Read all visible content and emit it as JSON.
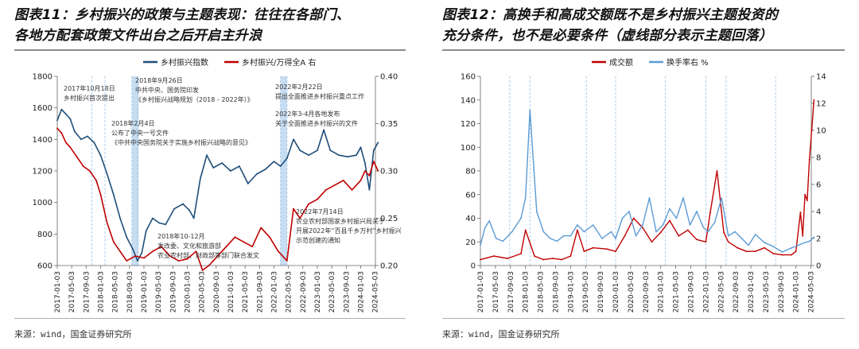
{
  "left": {
    "title_line1": "图表11：乡村振兴的政策与主题表现：往往在各部门、",
    "title_line2": "各地方配套政策文件出台之后开启主升浪",
    "source": "来源：wind，国金证券研究所",
    "colors": {
      "index": "#1f4e79",
      "ratio": "#c00000",
      "shade": "#bdd7ee"
    },
    "chart_data": {
      "type": "line",
      "title": "",
      "series": [
        {
          "name": "乡村振兴指数",
          "axis": "left",
          "x": [
            2017.0,
            2017.1,
            2017.2,
            2017.3,
            2017.4,
            2017.55,
            2017.7,
            2017.85,
            2018.0,
            2018.15,
            2018.3,
            2018.45,
            2018.6,
            2018.75,
            2018.85,
            2018.95,
            2019.05,
            2019.2,
            2019.35,
            2019.5,
            2019.7,
            2019.9,
            2020.05,
            2020.15,
            2020.3,
            2020.45,
            2020.6,
            2020.8,
            2021.0,
            2021.2,
            2021.4,
            2021.6,
            2021.8,
            2022.0,
            2022.15,
            2022.3,
            2022.45,
            2022.6,
            2022.8,
            2023.0,
            2023.15,
            2023.3,
            2023.5,
            2023.7,
            2023.9,
            2024.0,
            2024.1,
            2024.2,
            2024.3,
            2024.4
          ],
          "values": [
            1520,
            1590,
            1560,
            1530,
            1450,
            1400,
            1420,
            1380,
            1300,
            1180,
            1050,
            900,
            780,
            700,
            630,
            680,
            820,
            900,
            870,
            860,
            960,
            990,
            950,
            900,
            1150,
            1300,
            1220,
            1250,
            1200,
            1230,
            1120,
            1180,
            1210,
            1260,
            1230,
            1280,
            1400,
            1330,
            1300,
            1330,
            1460,
            1330,
            1300,
            1290,
            1300,
            1350,
            1250,
            1080,
            1330,
            1380
          ]
        },
        {
          "name": "乡村振兴/万得全A 右",
          "axis": "right",
          "x": [
            2017.0,
            2017.1,
            2017.2,
            2017.3,
            2017.45,
            2017.6,
            2017.75,
            2017.9,
            2018.0,
            2018.15,
            2018.3,
            2018.45,
            2018.6,
            2018.8,
            2019.0,
            2019.2,
            2019.4,
            2019.6,
            2019.8,
            2020.0,
            2020.2,
            2020.35,
            2020.5,
            2020.7,
            2020.9,
            2021.1,
            2021.3,
            2021.5,
            2021.7,
            2021.9,
            2022.1,
            2022.3,
            2022.45,
            2022.6,
            2022.8,
            2023.0,
            2023.2,
            2023.4,
            2023.6,
            2023.8,
            2024.0,
            2024.1,
            2024.2,
            2024.3,
            2024.4
          ],
          "values": [
            0.345,
            0.34,
            0.33,
            0.325,
            0.315,
            0.305,
            0.3,
            0.29,
            0.275,
            0.245,
            0.225,
            0.215,
            0.205,
            0.21,
            0.208,
            0.215,
            0.22,
            0.21,
            0.205,
            0.207,
            0.215,
            0.195,
            0.2,
            0.21,
            0.22,
            0.23,
            0.225,
            0.22,
            0.24,
            0.23,
            0.215,
            0.205,
            0.26,
            0.25,
            0.265,
            0.27,
            0.28,
            0.285,
            0.29,
            0.28,
            0.29,
            0.3,
            0.295,
            0.31,
            0.3
          ]
        }
      ],
      "x_tick_labels": [
        "2017-01-03",
        "2017-05-03",
        "2017-09-03",
        "2018-01-03",
        "2018-05-03",
        "2018-09-03",
        "2019-01-03",
        "2019-05-03",
        "2019-09-03",
        "2020-01-03",
        "2020-05-03",
        "2020-09-03",
        "2021-01-03",
        "2021-05-03",
        "2021-09-03",
        "2022-01-03",
        "2022-05-03",
        "2022-09-03",
        "2023-01-03",
        "2023-05-03",
        "2023-09-03",
        "2024-01-03",
        "2024-05-03"
      ],
      "y_left": {
        "ylim": [
          600,
          1800
        ],
        "ticks": [
          "600",
          "800",
          "1000",
          "1200",
          "1400",
          "1600",
          "1800"
        ]
      },
      "y_right": {
        "ylim": [
          0.2,
          0.4
        ],
        "ticks": [
          "0.20",
          "0.25",
          "0.30",
          "0.35",
          "0.40"
        ]
      },
      "policy_lines_x": [
        2017.8,
        2018.1,
        2018.72,
        2018.85,
        2022.15,
        2022.3
      ],
      "shaded_ranges": [
        [
          2018.72,
          2018.88
        ],
        [
          2022.15,
          2022.3
        ]
      ],
      "annotations": [
        {
          "lines": [
            "2017年10月18日",
            "乡村振兴首次提出"
          ]
        },
        {
          "lines": [
            "2018年9月26日",
            "中共中央、国务院印发",
            "《乡村振兴战略规划（2018 - 2022年）》"
          ]
        },
        {
          "lines": [
            "2018年2月4日",
            "公布了中央一号文件",
            "《中共中央国务院关于实施乡村振兴战略的意见》"
          ]
        },
        {
          "lines": [
            "2022年2月22日",
            "提出全面推进乡村振兴重点工作"
          ]
        },
        {
          "lines": [
            "2022年3-4月各地发布",
            "关于全面推进乡村振兴的文件"
          ]
        },
        {
          "lines": [
            "2018年10-12月",
            "发改委、文化和旅游部",
            "农业农村部、财政部等部门联合发文"
          ]
        },
        {
          "lines": [
            "2022年7月14日",
            "农业农村部国家乡村振兴局关于",
            "开展2022年“百县千乡万村”乡村振兴",
            "示范创建的通知"
          ]
        }
      ]
    }
  },
  "right": {
    "title_line1": "图表12：高换手和高成交额既不是乡村振兴主题投资的",
    "title_line2": "充分条件，也不是必要条件（虚线部分表示主题回落）",
    "source": "来源：wind，国金证券研究所",
    "colors": {
      "amount": "#c00000",
      "turnover": "#5b9bd5",
      "dash": "#9dc3e6"
    },
    "chart_data": {
      "type": "line",
      "title": "",
      "series": [
        {
          "name": "成交额",
          "axis": "left",
          "x": [
            2017.0,
            2017.3,
            2017.6,
            2017.9,
            2018.0,
            2018.2,
            2018.4,
            2018.6,
            2018.8,
            2019.0,
            2019.15,
            2019.3,
            2019.5,
            2019.8,
            2020.0,
            2020.2,
            2020.4,
            2020.6,
            2020.8,
            2021.0,
            2021.2,
            2021.4,
            2021.6,
            2021.8,
            2022.0,
            2022.1,
            2022.25,
            2022.4,
            2022.5,
            2022.7,
            2022.9,
            2023.1,
            2023.3,
            2023.5,
            2023.7,
            2023.9,
            2024.0,
            2024.1,
            2024.15,
            2024.2,
            2024.25,
            2024.3,
            2024.35,
            2024.4
          ],
          "values": [
            5,
            8,
            6,
            10,
            30,
            8,
            5,
            6,
            5,
            8,
            30,
            12,
            15,
            14,
            12,
            25,
            40,
            32,
            20,
            28,
            38,
            25,
            30,
            22,
            20,
            45,
            80,
            28,
            20,
            15,
            12,
            12,
            15,
            10,
            9,
            9,
            12,
            45,
            25,
            60,
            55,
            90,
            115,
            140
          ]
        },
        {
          "name": "换手率右 %",
          "axis": "right",
          "x": [
            2017.0,
            2017.1,
            2017.2,
            2017.35,
            2017.5,
            2017.7,
            2017.9,
            2018.0,
            2018.1,
            2018.25,
            2018.4,
            2018.55,
            2018.7,
            2018.85,
            2019.0,
            2019.15,
            2019.3,
            2019.5,
            2019.7,
            2019.9,
            2020.0,
            2020.15,
            2020.3,
            2020.45,
            2020.6,
            2020.75,
            2020.9,
            2021.05,
            2021.2,
            2021.35,
            2021.5,
            2021.65,
            2021.8,
            2021.95,
            2022.05,
            2022.2,
            2022.35,
            2022.5,
            2022.65,
            2022.8,
            2022.95,
            2023.1,
            2023.3,
            2023.5,
            2023.7,
            2023.9,
            2024.05,
            2024.2,
            2024.3,
            2024.4
          ],
          "values": [
            1.5,
            2.8,
            3.3,
            2.0,
            1.8,
            2.5,
            3.5,
            5.0,
            11.5,
            4.0,
            2.5,
            2.0,
            1.8,
            2.2,
            2.2,
            3.0,
            2.5,
            3.0,
            2.0,
            2.5,
            2.0,
            3.5,
            4.0,
            2.2,
            3.0,
            5.0,
            2.5,
            3.0,
            4.2,
            3.5,
            5.0,
            3.0,
            4.0,
            2.8,
            2.5,
            3.2,
            5.0,
            2.2,
            2.5,
            2.0,
            1.5,
            2.3,
            1.7,
            1.4,
            1.0,
            1.3,
            1.5,
            1.7,
            1.8,
            2.1
          ]
        }
      ],
      "x_tick_labels": [
        "2017-01-03",
        "2017-05-03",
        "2017-09-03",
        "2018-01-03",
        "2018-05-03",
        "2018-09-03",
        "2019-01-03",
        "2019-05-03",
        "2019-09-03",
        "2020-01-03",
        "2020-05-03",
        "2020-09-03",
        "2021-01-03",
        "2021-05-03",
        "2021-09-03",
        "2022-01-03",
        "2022-05-03",
        "2022-09-03",
        "2023-01-03",
        "2023-05-03",
        "2023-09-03",
        "2024-01-03",
        "2024-05-03"
      ],
      "y_left": {
        "ylim": [
          0,
          160
        ],
        "ticks": [
          "0",
          "20",
          "40",
          "60",
          "80",
          "100",
          "120",
          "140",
          "160"
        ]
      },
      "y_right": {
        "ylim": [
          0,
          14
        ],
        "ticks": [
          "0",
          "2",
          "4",
          "6",
          "8",
          "10",
          "12",
          "14"
        ]
      },
      "dashed_lines_x": [
        2017.65,
        2018.1,
        2019.35,
        2020.0,
        2021.1,
        2022.0,
        2022.45,
        2023.55
      ]
    }
  }
}
